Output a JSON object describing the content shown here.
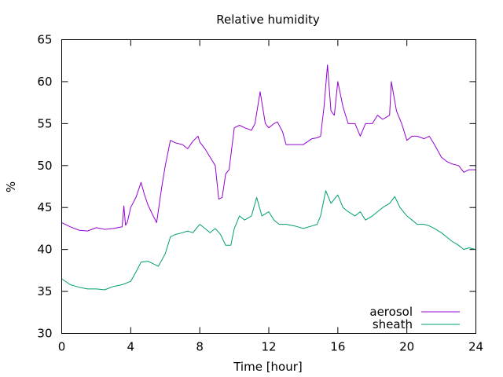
{
  "chart_data": {
    "type": "line",
    "title": "Relative humidity",
    "xlabel": "Time [hour]",
    "ylabel": "%",
    "xlim": [
      0,
      24
    ],
    "ylim": [
      30,
      65
    ],
    "xticks": [
      0,
      4,
      8,
      12,
      16,
      20,
      24
    ],
    "yticks": [
      30,
      35,
      40,
      45,
      50,
      55,
      60,
      65
    ],
    "grid": false,
    "legend_position": "bottom-right",
    "series": [
      {
        "name": "aerosol",
        "color": "#9400d3",
        "x": [
          0,
          0.5,
          1,
          1.5,
          2,
          2.5,
          3,
          3.5,
          3.6,
          3.7,
          3.8,
          4,
          4.3,
          4.6,
          4.8,
          5.0,
          5.3,
          5.5,
          5.8,
          6.0,
          6.3,
          6.6,
          7.0,
          7.3,
          7.6,
          7.9,
          8.0,
          8.3,
          8.6,
          8.9,
          9.1,
          9.3,
          9.5,
          9.7,
          10.0,
          10.3,
          10.6,
          11.0,
          11.2,
          11.5,
          11.8,
          12.0,
          12.3,
          12.5,
          12.8,
          13.0,
          13.5,
          14.0,
          14.5,
          14.8,
          15.0,
          15.2,
          15.4,
          15.6,
          15.8,
          16.0,
          16.3,
          16.6,
          17.0,
          17.3,
          17.6,
          18.0,
          18.3,
          18.6,
          19.0,
          19.1,
          19.4,
          19.7,
          20.0,
          20.3,
          20.6,
          21.0,
          21.3,
          21.6,
          22.0,
          22.3,
          22.6,
          23.0,
          23.3,
          23.6,
          24.0
        ],
        "values": [
          43.2,
          42.7,
          42.3,
          42.2,
          42.6,
          42.4,
          42.5,
          42.7,
          45.2,
          42.9,
          43.2,
          45.0,
          46.2,
          48.0,
          46.5,
          45.3,
          44.0,
          43.2,
          47.5,
          50.0,
          53.0,
          52.7,
          52.5,
          52.0,
          52.9,
          53.5,
          52.8,
          52.0,
          51.0,
          50.0,
          46.0,
          46.2,
          49.0,
          49.5,
          54.5,
          54.8,
          54.5,
          54.2,
          55.0,
          58.8,
          55.0,
          54.5,
          55.0,
          55.2,
          54.0,
          52.5,
          52.5,
          52.5,
          53.2,
          53.3,
          53.5,
          57.0,
          62.0,
          56.5,
          56.0,
          60.0,
          57.0,
          55.0,
          55.0,
          53.5,
          55.0,
          55.0,
          56.0,
          55.5,
          56.0,
          60.0,
          56.5,
          55.0,
          53.0,
          53.5,
          53.5,
          53.2,
          53.5,
          52.5,
          51.0,
          50.5,
          50.2,
          50.0,
          49.2,
          49.5,
          49.5
        ]
      },
      {
        "name": "sheath",
        "color": "#009e73",
        "x": [
          0,
          0.5,
          1,
          1.5,
          2,
          2.5,
          3,
          3.5,
          4,
          4.3,
          4.6,
          5.0,
          5.3,
          5.6,
          6.0,
          6.3,
          6.6,
          7.0,
          7.3,
          7.6,
          8.0,
          8.3,
          8.6,
          8.9,
          9.2,
          9.5,
          9.8,
          10.0,
          10.3,
          10.6,
          11.0,
          11.3,
          11.6,
          12.0,
          12.3,
          12.6,
          13.0,
          13.5,
          14.0,
          14.5,
          14.8,
          15.0,
          15.3,
          15.6,
          16.0,
          16.3,
          16.6,
          17.0,
          17.3,
          17.6,
          18.0,
          18.3,
          18.6,
          19.0,
          19.3,
          19.6,
          20.0,
          20.3,
          20.6,
          21.0,
          21.3,
          21.6,
          22.0,
          22.3,
          22.6,
          23.0,
          23.3,
          23.6,
          24.0
        ],
        "values": [
          36.5,
          35.8,
          35.5,
          35.3,
          35.3,
          35.2,
          35.6,
          35.8,
          36.2,
          37.3,
          38.5,
          38.6,
          38.3,
          38.0,
          39.5,
          41.5,
          41.8,
          42.0,
          42.2,
          42.0,
          43.0,
          42.5,
          42.0,
          42.5,
          41.8,
          40.5,
          40.5,
          42.5,
          44.0,
          43.5,
          44.0,
          46.2,
          44.0,
          44.5,
          43.5,
          43.0,
          43.0,
          42.8,
          42.5,
          42.8,
          43.0,
          44.0,
          47.0,
          45.5,
          46.5,
          45.0,
          44.5,
          44.0,
          44.5,
          43.5,
          44.0,
          44.5,
          45.0,
          45.5,
          46.3,
          45.0,
          44.0,
          43.5,
          43.0,
          43.0,
          42.8,
          42.5,
          42.0,
          41.5,
          41.0,
          40.5,
          40.0,
          40.2,
          40.0
        ]
      }
    ]
  }
}
